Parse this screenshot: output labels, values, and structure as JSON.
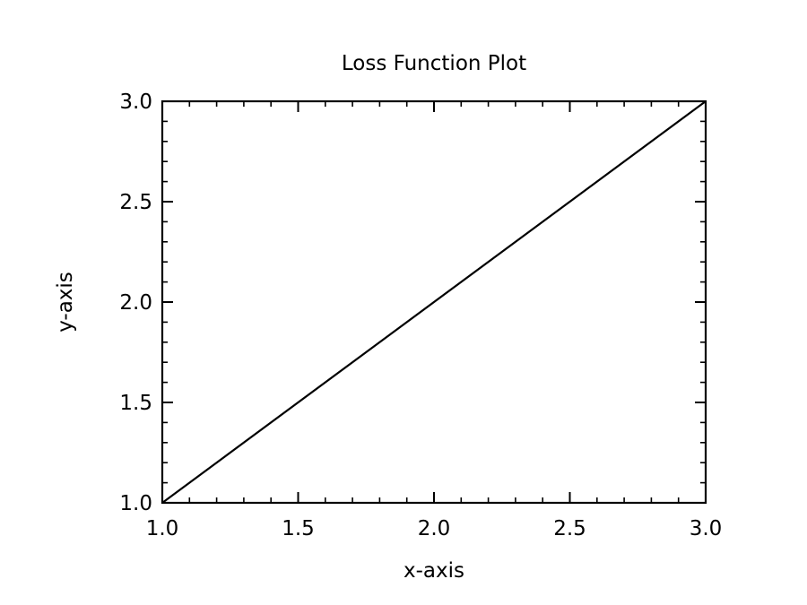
{
  "chart_data": {
    "type": "line",
    "title": "Loss Function Plot",
    "xlabel": "x-axis",
    "ylabel": "y-axis",
    "xlim": [
      1.0,
      3.0
    ],
    "ylim": [
      1.0,
      3.0
    ],
    "x_ticks": [
      "1.0",
      "1.5",
      "2.0",
      "2.5",
      "3.0"
    ],
    "y_ticks": [
      "1.0",
      "1.5",
      "2.0",
      "2.5",
      "3.0"
    ],
    "x_tick_values": [
      1.0,
      1.5,
      2.0,
      2.5,
      3.0
    ],
    "y_tick_values": [
      1.0,
      1.5,
      2.0,
      2.5,
      3.0
    ],
    "minor_ticks_per_interval": 5,
    "grid": false,
    "series": [
      {
        "color": "#000000",
        "x": [
          1.0,
          3.0
        ],
        "y": [
          1.0,
          3.0
        ]
      }
    ]
  }
}
